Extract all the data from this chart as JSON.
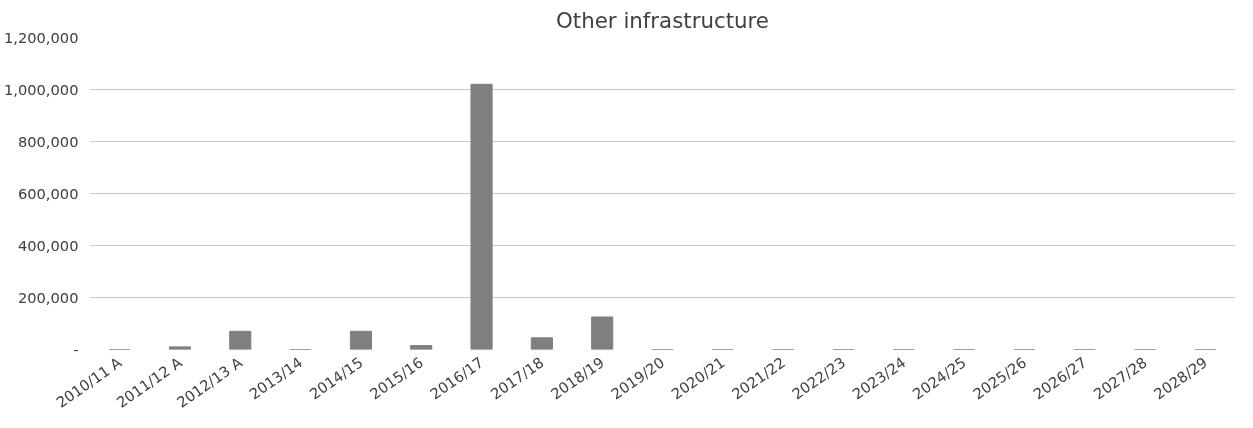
{
  "chart_data": {
    "type": "bar",
    "title": "Other infrastructure",
    "categories": [
      "2010/11 A",
      "2011/12 A",
      "2012/13 A",
      "2013/14",
      "2014/15",
      "2015/16",
      "2016/17",
      "2017/18",
      "2018/19",
      "2019/20",
      "2020/21",
      "2021/22",
      "2022/23",
      "2023/24",
      "2024/25",
      "2025/26",
      "2026/27",
      "2027/28",
      "2028/29"
    ],
    "values": [
      0,
      10000,
      70000,
      0,
      70000,
      15000,
      1020000,
      45000,
      125000,
      0,
      0,
      0,
      0,
      0,
      0,
      0,
      0,
      0,
      0
    ],
    "color": "#7f7f7f",
    "ylim": [
      0,
      1200000
    ],
    "yticks": [
      {
        "value": 0,
        "label": "-"
      },
      {
        "value": 200000,
        "label": "200,000"
      },
      {
        "value": 400000,
        "label": "400,000"
      },
      {
        "value": 600000,
        "label": "600,000"
      },
      {
        "value": 800000,
        "label": "800,000"
      },
      {
        "value": 1000000,
        "label": "1,000,000"
      },
      {
        "value": 1200000,
        "label": "1,200,000"
      }
    ],
    "grid": "y"
  }
}
